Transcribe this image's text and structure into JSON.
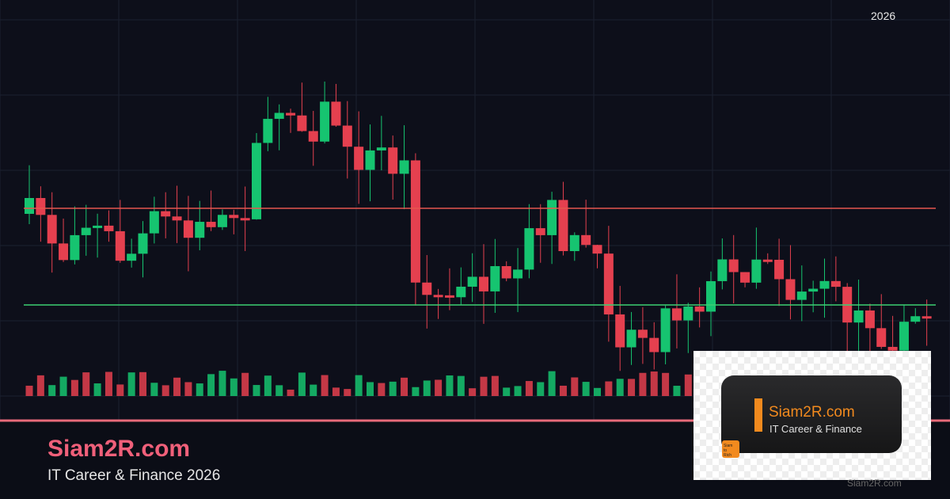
{
  "corner_label": "2026",
  "brand": {
    "title": "Siam2R.com",
    "subtitle": "IT Career & Finance 2026"
  },
  "logo": {
    "title": "Siam2R.com",
    "subtitle": "IT Career & Finance",
    "badge": "Siam to Rich"
  },
  "watermark": "Siam2R.com"
}
